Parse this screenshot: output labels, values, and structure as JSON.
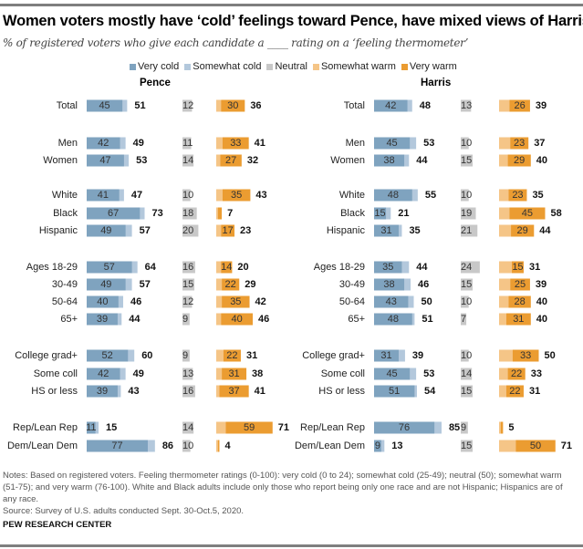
{
  "chart_data": {
    "type": "bar",
    "subtype": "stacked-diverging-horizontal",
    "title": "Women voters mostly have ‘cold’ feelings toward Pence, have mixed views of Harris",
    "subtitle": "% of registered voters who give each candidate a ____ rating on a ‘feeling thermometer’",
    "legend": [
      {
        "name": "Very cold",
        "color": "#7fa3bf"
      },
      {
        "name": "Somewhat cold",
        "color": "#b3c8dc"
      },
      {
        "name": "Neutral",
        "color": "#c8c8c8"
      },
      {
        "name": "Somewhat warm",
        "color": "#f5c587"
      },
      {
        "name": "Very warm",
        "color": "#eb9c31"
      }
    ],
    "legend_position": "top-center",
    "categories": [
      "Total",
      "Men",
      "Women",
      "White",
      "Black",
      "Hispanic",
      "Ages 18-29",
      "30-49",
      "50-64",
      "65+",
      "College grad+",
      "Some coll",
      "HS or less",
      "Rep/Lean Rep",
      "Dem/Lean Dem"
    ],
    "groups": [
      [
        0
      ],
      [
        1,
        2
      ],
      [
        3,
        4,
        5
      ],
      [
        6,
        7,
        8,
        9
      ],
      [
        10,
        11,
        12
      ],
      [
        13,
        14
      ]
    ],
    "panels": [
      {
        "name": "Pence",
        "very_cold": [
          45,
          42,
          47,
          41,
          67,
          49,
          57,
          49,
          40,
          39,
          52,
          42,
          39,
          11,
          77
        ],
        "cold_total": [
          51,
          49,
          53,
          47,
          73,
          57,
          64,
          57,
          46,
          44,
          60,
          49,
          43,
          15,
          86
        ],
        "neutral": [
          12,
          11,
          14,
          10,
          18,
          20,
          16,
          15,
          12,
          9,
          9,
          13,
          16,
          14,
          10
        ],
        "very_warm": [
          30,
          33,
          27,
          35,
          null,
          17,
          14,
          22,
          35,
          40,
          22,
          31,
          37,
          59,
          null
        ],
        "warm_total": [
          36,
          41,
          32,
          43,
          7,
          23,
          20,
          29,
          42,
          46,
          31,
          38,
          41,
          71,
          4
        ]
      },
      {
        "name": "Harris",
        "very_cold": [
          42,
          45,
          38,
          48,
          15,
          31,
          35,
          38,
          43,
          48,
          31,
          45,
          51,
          76,
          9
        ],
        "cold_total": [
          48,
          53,
          44,
          55,
          21,
          35,
          44,
          46,
          50,
          51,
          39,
          53,
          54,
          85,
          13
        ],
        "neutral": [
          13,
          10,
          15,
          10,
          19,
          21,
          24,
          15,
          10,
          7,
          10,
          14,
          15,
          9,
          15
        ],
        "very_warm": [
          26,
          23,
          29,
          23,
          45,
          29,
          15,
          25,
          28,
          31,
          33,
          22,
          22,
          null,
          50
        ],
        "warm_total": [
          39,
          37,
          40,
          35,
          58,
          44,
          31,
          39,
          40,
          40,
          50,
          33,
          31,
          5,
          71
        ]
      }
    ],
    "xlabel": "",
    "ylabel": "",
    "xlim": [
      0,
      100
    ],
    "grid": false
  },
  "notes": "Notes: Based on registered voters. Feeling thermometer ratings (0-100): very cold (0 to 24); somewhat cold (25-49); neutral (50); somewhat warm (51-75); and very warm (76-100). White and Black adults include only those who report being only one race and are not Hispanic; Hispanics are of any race.",
  "source": "Source: Survey of U.S. adults conducted Sept. 30-Oct.5, 2020.",
  "brand": "PEW RESEARCH CENTER"
}
